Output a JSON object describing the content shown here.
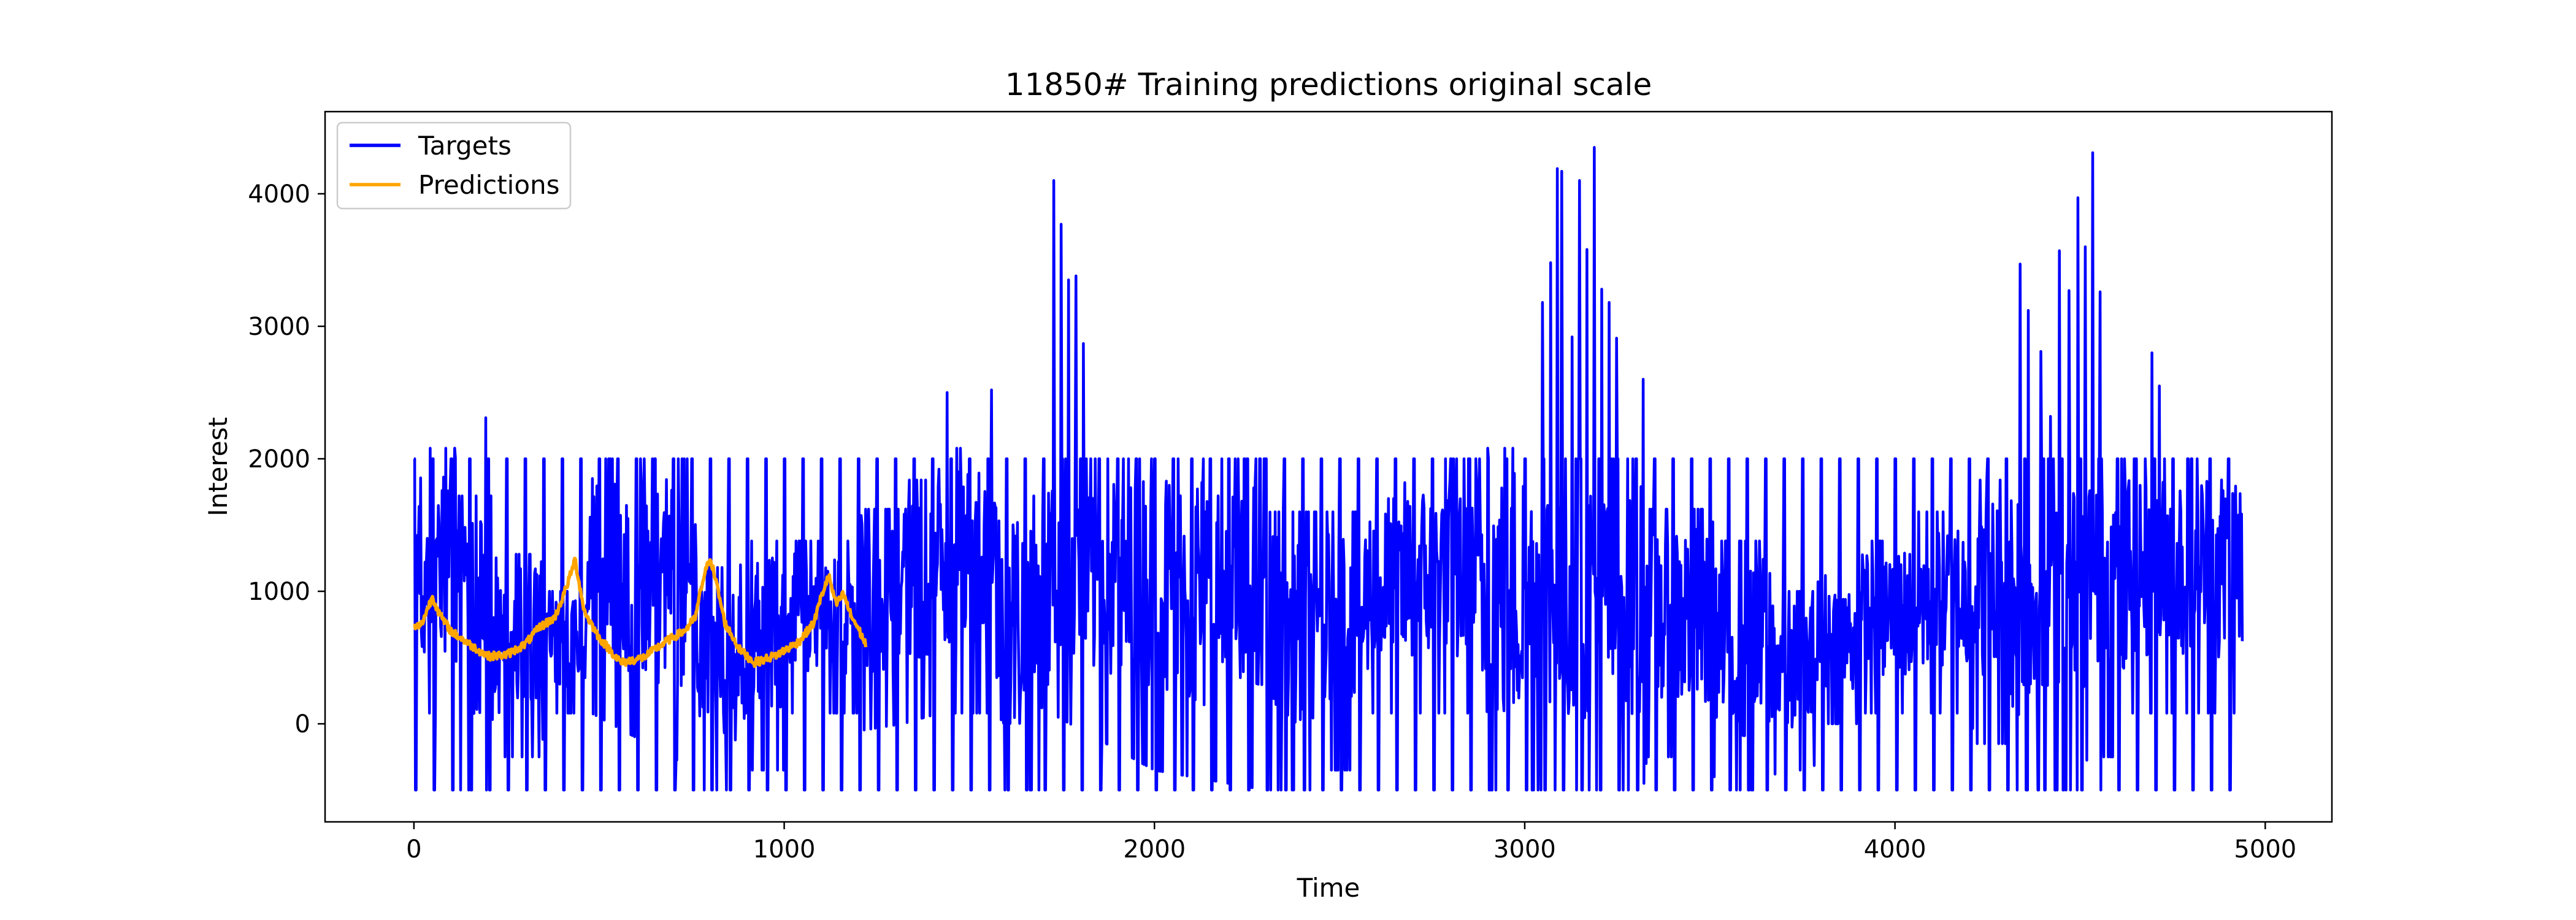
{
  "chart_data": {
    "type": "line",
    "title": "11850# Training predictions original scale",
    "xlabel": "Time",
    "ylabel": "Interest",
    "xlim": [
      -240,
      5180
    ],
    "ylim": [
      -740,
      4620
    ],
    "x_ticks": [
      0,
      1000,
      2000,
      3000,
      4000,
      5000
    ],
    "y_ticks": [
      0,
      1000,
      2000,
      3000,
      4000
    ],
    "grid": false,
    "legend": {
      "position": "top-left"
    },
    "series": [
      {
        "name": "Targets",
        "color": "#0000ff",
        "length": 4940,
        "min": -500,
        "max": 4350,
        "square_wave_period": 50,
        "square_wave_high": 2000,
        "upper_envelope": [
          [
            0,
            2080
          ],
          [
            110,
            2080
          ],
          [
            120,
            1720
          ],
          [
            220,
            1720
          ],
          [
            240,
            1280
          ],
          [
            340,
            1280
          ],
          [
            360,
            1000
          ],
          [
            460,
            1000
          ],
          [
            480,
            2000
          ],
          [
            760,
            2000
          ],
          [
            780,
            1180
          ],
          [
            880,
            1180
          ],
          [
            900,
            1380
          ],
          [
            1000,
            1380
          ],
          [
            1020,
            1380
          ],
          [
            1100,
            1380
          ],
          [
            1120,
            1380
          ],
          [
            1200,
            1380
          ],
          [
            1210,
            1620
          ],
          [
            1310,
            1620
          ],
          [
            1320,
            1840
          ],
          [
            1400,
            1840
          ],
          [
            1420,
            2080
          ],
          [
            1570,
            2080
          ],
          [
            1580,
            1720
          ],
          [
            1700,
            1720
          ],
          [
            1720,
            2000
          ],
          [
            2300,
            2000
          ],
          [
            2320,
            1600
          ],
          [
            2440,
            1600
          ],
          [
            2460,
            1600
          ],
          [
            2560,
            1600
          ],
          [
            2580,
            1700
          ],
          [
            2660,
            1700
          ],
          [
            2680,
            1850
          ],
          [
            2760,
            1850
          ],
          [
            2780,
            2000
          ],
          [
            2880,
            2000
          ],
          [
            2890,
            2080
          ],
          [
            3020,
            2080
          ],
          [
            3060,
            2000
          ],
          [
            3320,
            2000
          ],
          [
            3330,
            1620
          ],
          [
            3500,
            1620
          ],
          [
            3520,
            1380
          ],
          [
            3660,
            1380
          ],
          [
            3680,
            1000
          ],
          [
            3780,
            1000
          ],
          [
            3800,
            1120
          ],
          [
            3900,
            1120
          ],
          [
            3920,
            1380
          ],
          [
            4040,
            1380
          ],
          [
            4060,
            1600
          ],
          [
            4200,
            1600
          ],
          [
            4220,
            1840
          ],
          [
            4300,
            1840
          ],
          [
            4320,
            2000
          ],
          [
            4940,
            2000
          ]
        ],
        "lower_envelope": [
          [
            0,
            80
          ],
          [
            110,
            80
          ],
          [
            120,
            -500
          ],
          [
            220,
            -500
          ],
          [
            240,
            -250
          ],
          [
            340,
            -250
          ],
          [
            360,
            80
          ],
          [
            460,
            80
          ],
          [
            480,
            80
          ],
          [
            760,
            -350
          ],
          [
            780,
            -500
          ],
          [
            880,
            -500
          ],
          [
            900,
            -350
          ],
          [
            1000,
            -350
          ],
          [
            1020,
            80
          ],
          [
            1200,
            80
          ],
          [
            1210,
            -50
          ],
          [
            1320,
            0
          ],
          [
            1420,
            80
          ],
          [
            1570,
            80
          ],
          [
            1580,
            -500
          ],
          [
            1700,
            -500
          ],
          [
            1720,
            80
          ],
          [
            2000,
            -350
          ],
          [
            2300,
            -500
          ],
          [
            2440,
            -500
          ],
          [
            2460,
            -350
          ],
          [
            2560,
            -350
          ],
          [
            2580,
            80
          ],
          [
            2780,
            80
          ],
          [
            2880,
            80
          ],
          [
            2890,
            -500
          ],
          [
            3020,
            -500
          ],
          [
            3060,
            -500
          ],
          [
            3320,
            -500
          ],
          [
            3330,
            -250
          ],
          [
            3500,
            -250
          ],
          [
            3520,
            -500
          ],
          [
            3660,
            -500
          ],
          [
            3680,
            -350
          ],
          [
            3780,
            -350
          ],
          [
            3800,
            0
          ],
          [
            3900,
            0
          ],
          [
            3920,
            80
          ],
          [
            4200,
            80
          ],
          [
            4220,
            -150
          ],
          [
            4300,
            -150
          ],
          [
            4320,
            -500
          ],
          [
            4500,
            -500
          ],
          [
            4520,
            -250
          ],
          [
            4620,
            -250
          ],
          [
            4640,
            80
          ],
          [
            4940,
            80
          ]
        ],
        "spikes": [
          [
            195,
            2310
          ],
          [
            1440,
            2500
          ],
          [
            1560,
            2520
          ],
          [
            1728,
            4100
          ],
          [
            1748,
            3770
          ],
          [
            1768,
            3350
          ],
          [
            1788,
            3380
          ],
          [
            1808,
            2870
          ],
          [
            2900,
            2080
          ],
          [
            3048,
            3180
          ],
          [
            3070,
            3480
          ],
          [
            3088,
            4190
          ],
          [
            3100,
            4170
          ],
          [
            3128,
            2920
          ],
          [
            3148,
            4100
          ],
          [
            3168,
            3580
          ],
          [
            3188,
            4350
          ],
          [
            3208,
            3280
          ],
          [
            3228,
            3180
          ],
          [
            3248,
            2910
          ],
          [
            3320,
            2600
          ],
          [
            4338,
            3470
          ],
          [
            4360,
            3120
          ],
          [
            4395,
            2810
          ],
          [
            4420,
            2320
          ],
          [
            4445,
            3570
          ],
          [
            4470,
            3270
          ],
          [
            4495,
            3970
          ],
          [
            4515,
            3600
          ],
          [
            4535,
            4310
          ],
          [
            4555,
            3260
          ],
          [
            4695,
            2800
          ],
          [
            4715,
            2550
          ]
        ]
      },
      {
        "name": "Predictions",
        "color": "#ffa500",
        "length": 1220,
        "min": 440,
        "max": 1280,
        "trend": [
          [
            0,
            720
          ],
          [
            20,
            750
          ],
          [
            50,
            960
          ],
          [
            70,
            820
          ],
          [
            100,
            700
          ],
          [
            150,
            600
          ],
          [
            200,
            510
          ],
          [
            250,
            520
          ],
          [
            300,
            600
          ],
          [
            340,
            730
          ],
          [
            380,
            800
          ],
          [
            400,
            940
          ],
          [
            420,
            1100
          ],
          [
            435,
            1240
          ],
          [
            460,
            850
          ],
          [
            500,
            650
          ],
          [
            560,
            460
          ],
          [
            620,
            500
          ],
          [
            680,
            620
          ],
          [
            730,
            700
          ],
          [
            760,
            800
          ],
          [
            780,
            1080
          ],
          [
            800,
            1260
          ],
          [
            820,
            1020
          ],
          [
            840,
            760
          ],
          [
            880,
            560
          ],
          [
            920,
            460
          ],
          [
            980,
            520
          ],
          [
            1040,
            620
          ],
          [
            1080,
            760
          ],
          [
            1100,
            960
          ],
          [
            1120,
            1120
          ],
          [
            1140,
            900
          ],
          [
            1160,
            980
          ],
          [
            1180,
            820
          ],
          [
            1200,
            720
          ],
          [
            1220,
            600
          ]
        ]
      }
    ]
  }
}
